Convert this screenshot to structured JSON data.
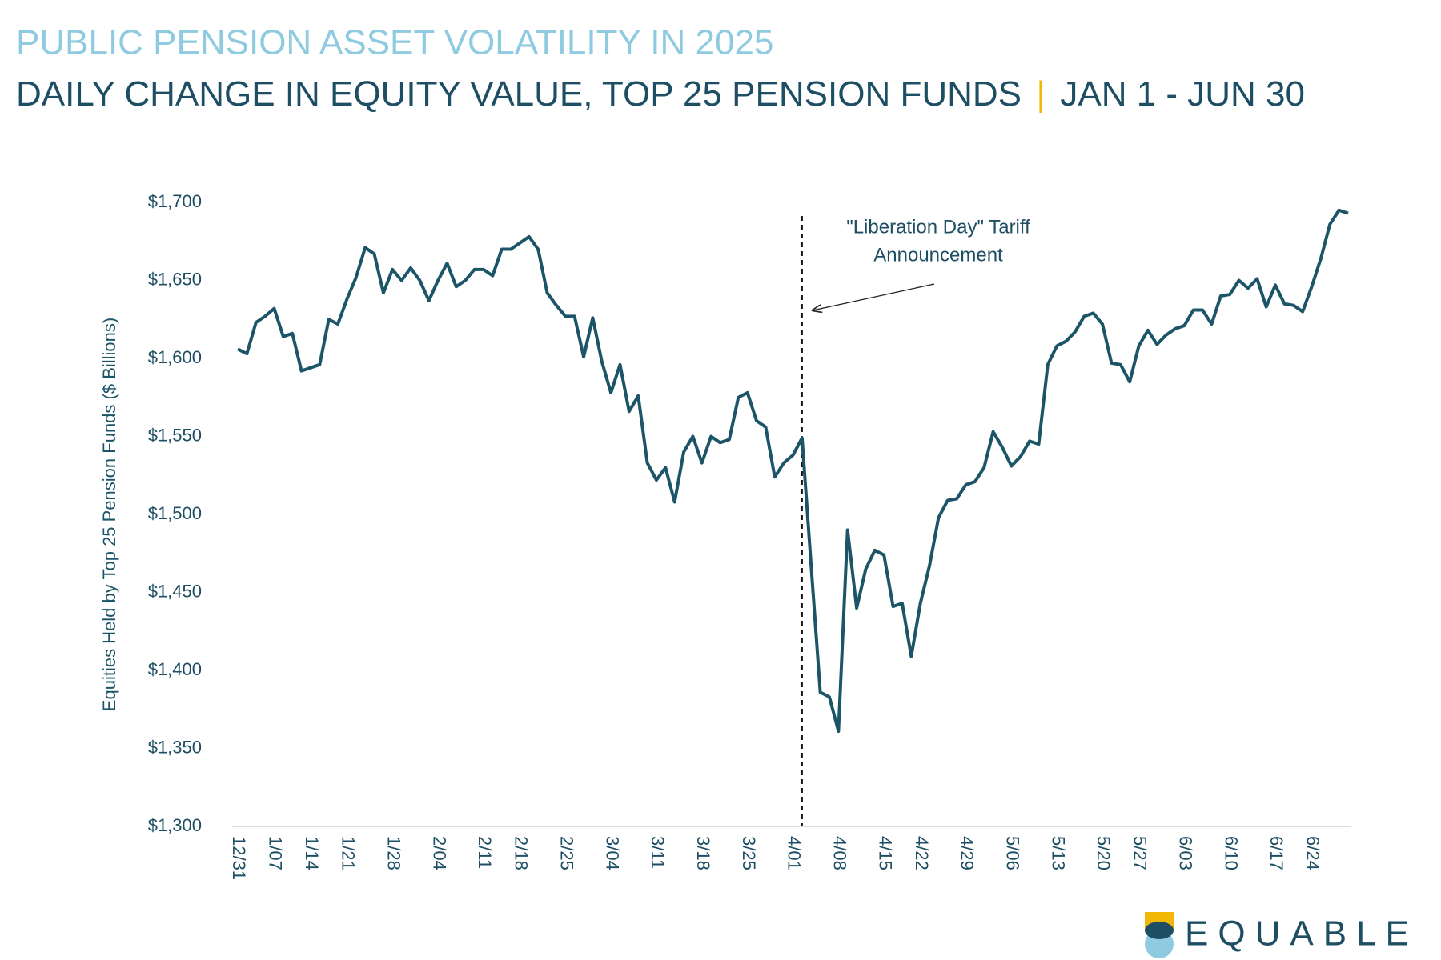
{
  "chart_data": {
    "type": "line",
    "title": "PUBLIC PENSION ASSET VOLATILITY IN 2025",
    "subtitle": [
      "DAILY CHANGE IN EQUITY VALUE, TOP 25 PENSION FUNDS",
      "|",
      "JAN 1 - JUN 30"
    ],
    "y_axis_label": "Equities Held by Top 25 Pension Funds ($ Billions)",
    "annotation": [
      "\"Liberation Day\" Tariff",
      "Announcement"
    ],
    "logo": "EQUABLE",
    "categories": [
      "12/31",
      null,
      null,
      null,
      "1/07",
      null,
      null,
      null,
      "1/14",
      null,
      null,
      null,
      "1/21",
      null,
      null,
      null,
      null,
      "1/28",
      null,
      null,
      null,
      null,
      "2/04",
      null,
      null,
      null,
      null,
      "2/11",
      null,
      null,
      null,
      "2/18",
      null,
      null,
      null,
      null,
      "2/25",
      null,
      null,
      null,
      null,
      "3/04",
      null,
      null,
      null,
      null,
      "3/11",
      null,
      null,
      null,
      null,
      "3/18",
      null,
      null,
      null,
      null,
      "3/25",
      null,
      null,
      null,
      null,
      "4/01",
      null,
      null,
      null,
      null,
      "4/08",
      null,
      null,
      null,
      null,
      "4/15",
      null,
      null,
      null,
      "4/22",
      null,
      null,
      null,
      null,
      "4/29",
      null,
      null,
      null,
      null,
      "5/06",
      null,
      null,
      null,
      null,
      "5/13",
      null,
      null,
      null,
      null,
      "5/20",
      null,
      null,
      null,
      "5/27",
      null,
      null,
      null,
      null,
      "6/03",
      null,
      null,
      null,
      null,
      "6/10",
      null,
      null,
      null,
      null,
      "6/17",
      null,
      null,
      null,
      "6/24",
      null,
      null,
      null,
      null
    ],
    "series": [
      {
        "name": "Equities Held by Top 25 Pension Funds",
        "color": "#1d5568",
        "values": [
          1606,
          1603,
          1623,
          1627,
          1632,
          1614,
          1616,
          1592,
          1594,
          1596,
          1625,
          1622,
          1638,
          1652,
          1671,
          1667,
          1642,
          1657,
          1650,
          1658,
          1650,
          1637,
          1650,
          1661,
          1646,
          1650,
          1657,
          1657,
          1653,
          1670,
          1670,
          1674,
          1678,
          1670,
          1642,
          1634,
          1627,
          1627,
          1601,
          1626,
          1598,
          1578,
          1596,
          1566,
          1576,
          1533,
          1522,
          1530,
          1508,
          1540,
          1550,
          1533,
          1550,
          1546,
          1548,
          1575,
          1578,
          1560,
          1556,
          1524,
          1533,
          1538,
          1549,
          1467,
          1386,
          1383,
          1361,
          1490,
          1440,
          1465,
          1477,
          1474,
          1441,
          1443,
          1409,
          1443,
          1467,
          1498,
          1509,
          1510,
          1519,
          1521,
          1530,
          1553,
          1543,
          1531,
          1537,
          1547,
          1545,
          1596,
          1608,
          1611,
          1617,
          1627,
          1629,
          1622,
          1597,
          1596,
          1585,
          1608,
          1618,
          1609,
          1615,
          1619,
          1621,
          1631,
          1631,
          1622,
          1640,
          1641,
          1650,
          1645,
          1651,
          1633,
          1647,
          1635,
          1634,
          1630,
          1646,
          1664,
          1686,
          1695,
          1693
        ]
      }
    ],
    "ylim": [
      1300,
      1700
    ],
    "yticks": [
      {
        "value": 1300,
        "label": "$1,300"
      },
      {
        "value": 1350,
        "label": "$1,350"
      },
      {
        "value": 1400,
        "label": "$1,400"
      },
      {
        "value": 1450,
        "label": "$1,450"
      },
      {
        "value": 1500,
        "label": "$1,500"
      },
      {
        "value": 1550,
        "label": "$1,550"
      },
      {
        "value": 1600,
        "label": "$1,600"
      },
      {
        "value": 1650,
        "label": "$1,650"
      },
      {
        "value": 1700,
        "label": "$1,700"
      }
    ],
    "grid": false
  }
}
